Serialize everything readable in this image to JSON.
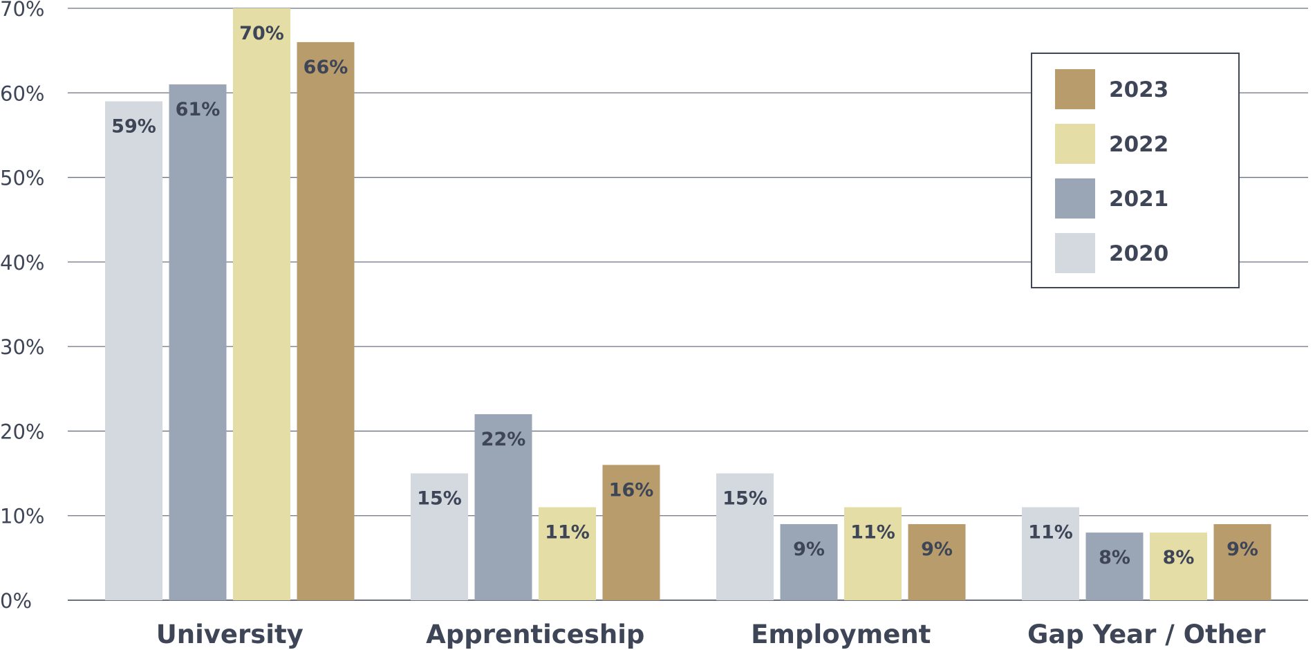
{
  "chart_data": {
    "type": "bar",
    "categories": [
      "University",
      "Apprenticeship",
      "Employment",
      "Gap Year / Other"
    ],
    "series": [
      {
        "name": "2020",
        "values": [
          59,
          15,
          15,
          11
        ],
        "color": "#d4d9e0"
      },
      {
        "name": "2021",
        "values": [
          61,
          22,
          9,
          8
        ],
        "color": "#9aa5b6"
      },
      {
        "name": "2022",
        "values": [
          70,
          11,
          11,
          8
        ],
        "color": "#e4dea6"
      },
      {
        "name": "2023",
        "values": [
          66,
          16,
          9,
          9
        ],
        "color": "#b89c6c"
      }
    ],
    "value_suffix": "%",
    "ylim": [
      0,
      70
    ],
    "yticks": [
      "0%",
      "10%",
      "20%",
      "30%",
      "40%",
      "50%",
      "60%",
      "70%"
    ],
    "grid": true,
    "legend_position": "top-right",
    "legend_order": [
      "2023",
      "2022",
      "2021",
      "2020"
    ],
    "gridline_color": "#6b7180",
    "text_color": "#3e4556"
  }
}
